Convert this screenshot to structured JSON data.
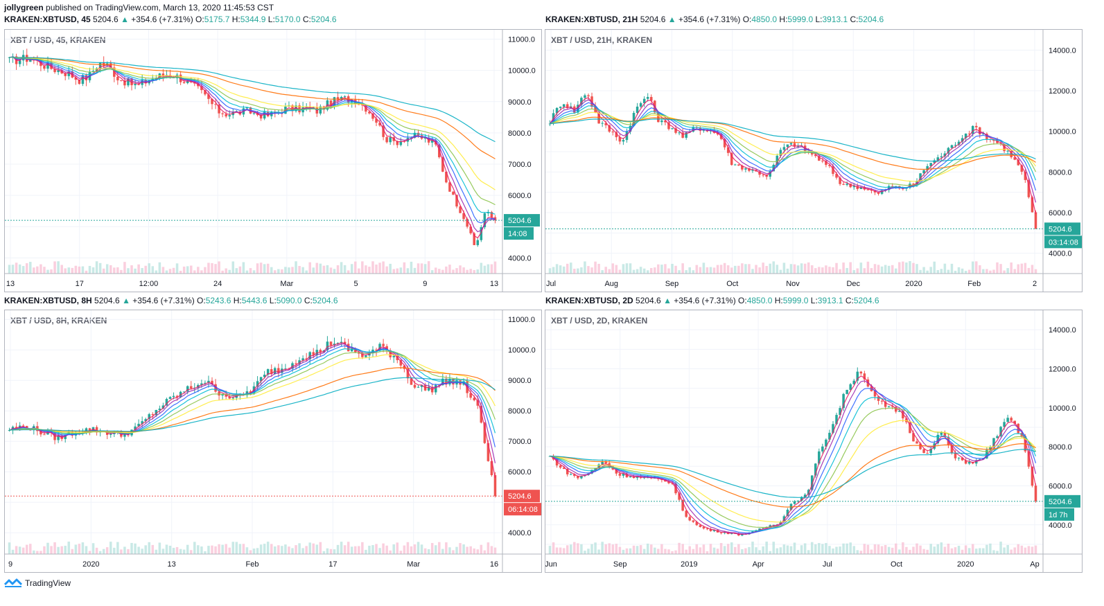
{
  "header": {
    "author": "jollygreen",
    "published": "published on TradingView.com, March 13, 2020 11:45:53 CST"
  },
  "footer": {
    "brand": "TradingView"
  },
  "colors": {
    "up": "#26a69a",
    "down": "#ef5350",
    "ema_pink": "#e91e63",
    "ema_purple": "#9c27b0",
    "ema_blue": "#2962ff",
    "ema_lightblue": "#00bcd4",
    "ema_green": "#8bc34a",
    "ema_yellow": "#ffeb3b",
    "ema_orange": "#ff6d00",
    "ema_cyan": "#00acc1"
  },
  "chart_data": [
    {
      "type": "candlestick",
      "symbol": "KRAKEN:XBTUSD",
      "interval": "45",
      "header": {
        "symbol_interval": "KRAKEN:XBTUSD, 45",
        "last": "5204.6",
        "change": "+354.6 (+7.31%)",
        "O": "5175.7",
        "H": "5344.9",
        "L": "5170.0",
        "C": "5204.6"
      },
      "label": "XBT / USD, 45, KRAKEN",
      "y_ticks": [
        "11000.0",
        "10000.0",
        "9000.0",
        "8000.0",
        "7000.0",
        "6000.0",
        "4000.0"
      ],
      "x_ticks": [
        "13",
        "17",
        "12:00",
        "24",
        "Mar",
        "5",
        "9",
        "13"
      ],
      "ylim": [
        3500,
        11300
      ],
      "price_label": "5204.6",
      "timer": "14:08",
      "label_color": "#26a69a",
      "close_path": [
        10300,
        10350,
        10400,
        10250,
        10100,
        10000,
        9900,
        9700,
        9800,
        10250,
        10150,
        9750,
        9600,
        9500,
        9700,
        9800,
        9900,
        9800,
        9600,
        9400,
        9100,
        8700,
        8600,
        8650,
        8700,
        8600,
        8550,
        8650,
        8800,
        8750,
        8800,
        8700,
        8900,
        9050,
        9100,
        9050,
        8800,
        8400,
        7800,
        7700,
        7850,
        7900,
        7800,
        7600,
        6500,
        5800,
        5200,
        4300,
        5500,
        5200
      ]
    },
    {
      "type": "candlestick",
      "symbol": "KRAKEN:XBTUSD",
      "interval": "21H",
      "header": {
        "symbol_interval": "KRAKEN:XBTUSD, 21H",
        "last": "5204.6",
        "change": "+354.6 (+7.31%)",
        "O": "4850.0",
        "H": "5999.0",
        "L": "3913.1",
        "C": "5204.6"
      },
      "label": "XBT / USD, 21H, KRAKEN",
      "y_ticks": [
        "14000.0",
        "12000.0",
        "10000.0",
        "8000.0",
        "6000.0",
        "4000.0"
      ],
      "x_ticks": [
        "Jul",
        "Aug",
        "Sep",
        "Oct",
        "Nov",
        "Dec",
        "2020",
        "Feb",
        "2"
      ],
      "ylim": [
        3000,
        15000
      ],
      "price_label": "5204.6",
      "timer": "03:14:08",
      "label_color": "#26a69a",
      "close_path": [
        10500,
        11500,
        11000,
        12000,
        10500,
        10000,
        9500,
        11000,
        11800,
        10500,
        10200,
        9700,
        10200,
        10100,
        9800,
        8400,
        8200,
        8000,
        7800,
        9100,
        9400,
        9100,
        8700,
        8200,
        7400,
        7300,
        7200,
        6900,
        7300,
        7200,
        7400,
        8300,
        8700,
        9200,
        9800,
        10200,
        9700,
        9400,
        8800,
        7900,
        5200
      ]
    },
    {
      "type": "candlestick",
      "symbol": "KRAKEN:XBTUSD",
      "interval": "8H",
      "header": {
        "symbol_interval": "KRAKEN:XBTUSD, 8H",
        "last": "5204.6",
        "change": "+354.6 (+7.31%)",
        "O": "5243.6",
        "H": "5443.6",
        "L": "5090.0",
        "C": "5204.6"
      },
      "label": "XBT / USD, 8H, KRAKEN",
      "y_ticks": [
        "11000.0",
        "10000.0",
        "9000.0",
        "8000.0",
        "7000.0",
        "6000.0",
        "4000.0"
      ],
      "x_ticks": [
        "9",
        "2020",
        "13",
        "Feb",
        "17",
        "Mar",
        "16"
      ],
      "ylim": [
        3300,
        11300
      ],
      "price_label": "5204.6",
      "timer": "06:14:08",
      "label_color": "#ef5350",
      "close_path": [
        7400,
        7500,
        7300,
        7100,
        7300,
        7400,
        7300,
        7200,
        7500,
        8000,
        8400,
        8700,
        9000,
        8600,
        8400,
        8700,
        9300,
        9400,
        9800,
        9900,
        10300,
        10000,
        9800,
        10100,
        9700,
        8800,
        8700,
        9000,
        8900,
        8000,
        5200
      ]
    },
    {
      "type": "candlestick",
      "symbol": "KRAKEN:XBTUSD",
      "interval": "2D",
      "header": {
        "symbol_interval": "KRAKEN:XBTUSD, 2D",
        "last": "5204.6",
        "change": "+354.6 (+7.31%)",
        "O": "4850.0",
        "H": "5999.0",
        "L": "3913.1",
        "C": "5204.6"
      },
      "label": "XBT / USD, 2D, KRAKEN",
      "y_ticks": [
        "14000.0",
        "12000.0",
        "10000.0",
        "8000.0",
        "6000.0",
        "4000.0"
      ],
      "x_ticks": [
        "Jun",
        "Sep",
        "2019",
        "Apr",
        "Jul",
        "Oct",
        "2020",
        "Ap"
      ],
      "ylim": [
        2500,
        15000
      ],
      "price_label": "5204.6",
      "timer": "1d 7h",
      "label_color": "#26a69a",
      "close_path": [
        7500,
        6800,
        6400,
        6700,
        7300,
        6600,
        6500,
        6400,
        6300,
        6200,
        4500,
        3900,
        3700,
        3600,
        3500,
        3600,
        3900,
        4100,
        5200,
        5500,
        7800,
        9200,
        11000,
        12000,
        10500,
        10000,
        9800,
        8300,
        7600,
        8800,
        7400,
        7200,
        7300,
        8500,
        9500,
        8500,
        5200
      ]
    }
  ]
}
